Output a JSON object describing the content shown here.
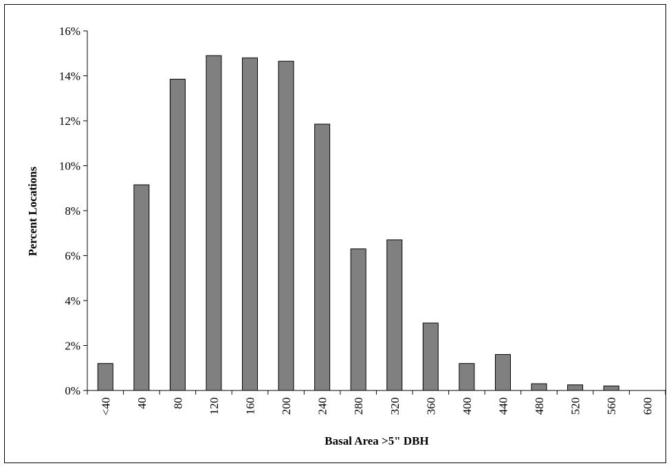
{
  "chart_data": {
    "type": "bar",
    "title": "",
    "xlabel": "Basal Area >5\" DBH",
    "ylabel": "Percent Locations",
    "categories": [
      "<40",
      "40",
      "80",
      "120",
      "160",
      "200",
      "240",
      "280",
      "320",
      "360",
      "400",
      "440",
      "480",
      "520",
      "560",
      "600"
    ],
    "values": [
      1.2,
      9.15,
      13.85,
      14.9,
      14.8,
      14.65,
      11.85,
      6.3,
      6.7,
      3.0,
      1.2,
      1.6,
      0.3,
      0.25,
      0.2,
      0
    ],
    "ylim": [
      0,
      16
    ],
    "yticks": [
      0,
      2,
      4,
      6,
      8,
      10,
      12,
      14,
      16
    ],
    "ytick_suffix": "%",
    "grid": false,
    "legend": "none",
    "bar_color": "#808080",
    "bar_edge_color": "#000000"
  }
}
